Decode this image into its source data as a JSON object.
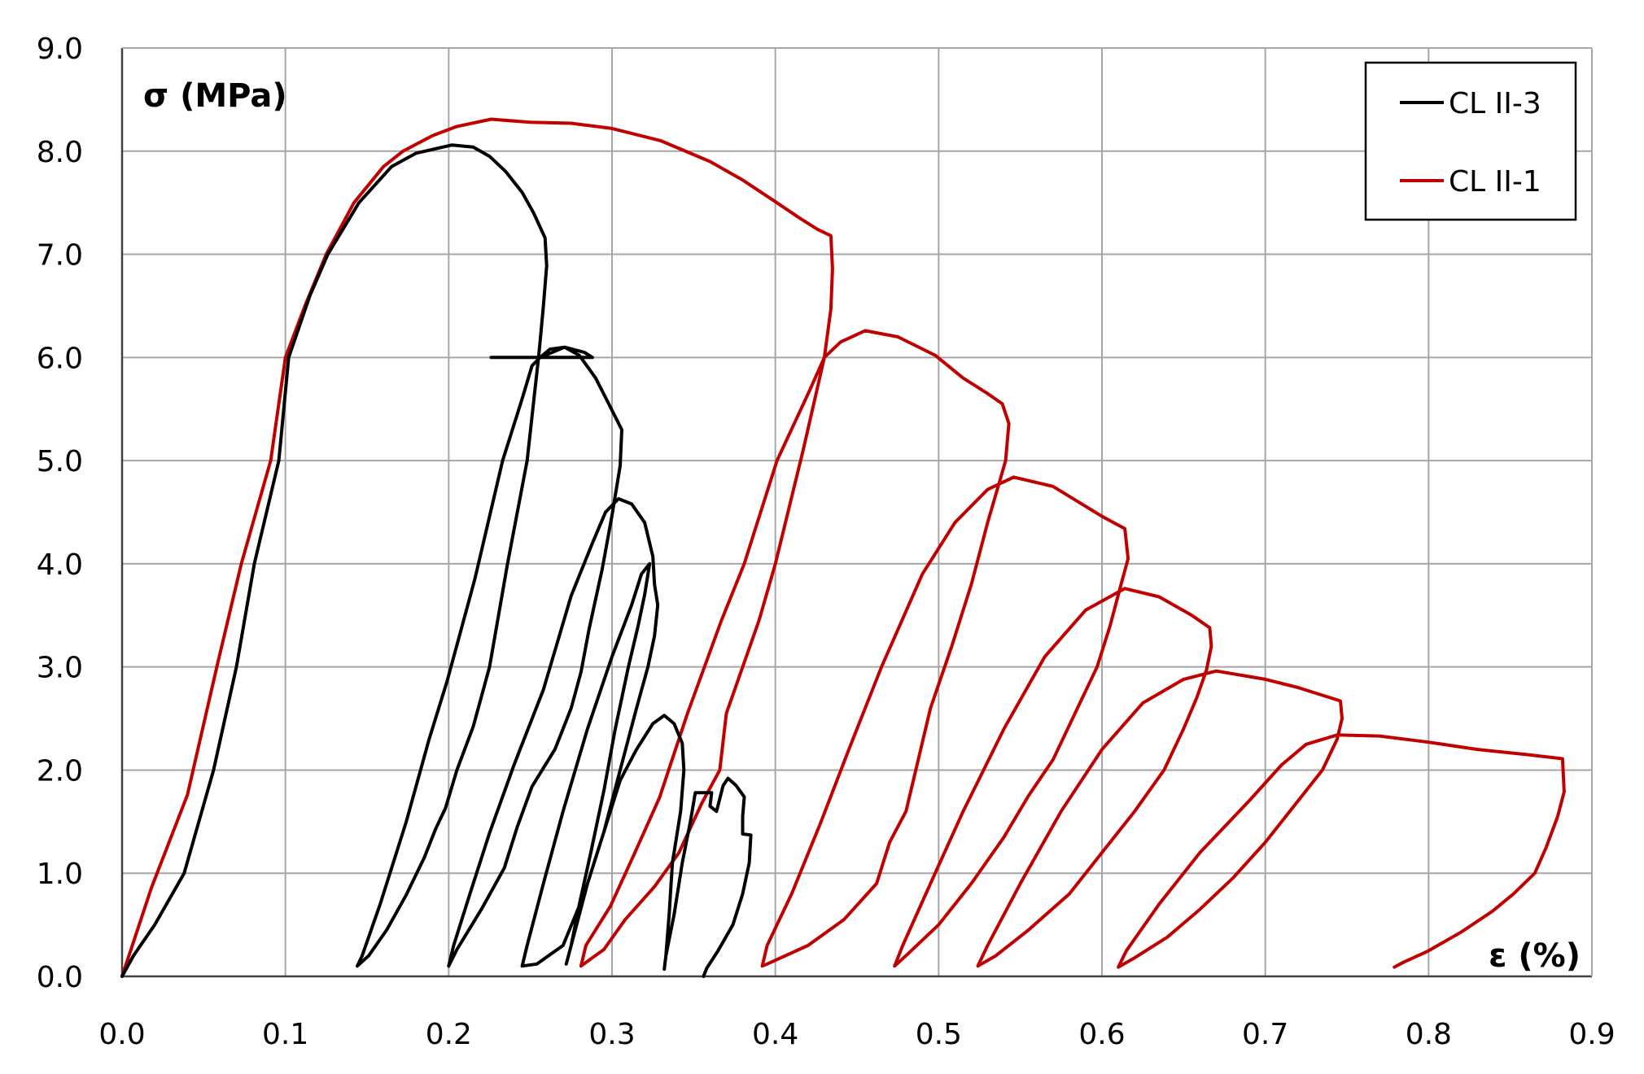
{
  "chart_data": {
    "type": "line",
    "title": "",
    "xlabel": "ε (%)",
    "ylabel": "σ (MPa)",
    "xlim": [
      0.0,
      0.9
    ],
    "ylim": [
      0.0,
      9.0
    ],
    "x_ticks": [
      "0.0",
      "0.1",
      "0.2",
      "0.3",
      "0.4",
      "0.5",
      "0.6",
      "0.7",
      "0.8",
      "0.9"
    ],
    "y_ticks": [
      "0.0",
      "1.0",
      "2.0",
      "3.0",
      "4.0",
      "5.0",
      "6.0",
      "7.0",
      "8.0",
      "9.0"
    ],
    "grid": true,
    "legend_position": "top-right",
    "series": [
      {
        "name": "CL II-3",
        "color": "#000000",
        "points": [
          [
            0.0,
            0.0
          ],
          [
            0.007,
            0.2
          ],
          [
            0.02,
            0.5
          ],
          [
            0.038,
            1.0
          ],
          [
            0.056,
            2.0
          ],
          [
            0.07,
            3.0
          ],
          [
            0.081,
            4.0
          ],
          [
            0.096,
            5.0
          ],
          [
            0.102,
            6.0
          ],
          [
            0.115,
            6.6
          ],
          [
            0.126,
            7.0
          ],
          [
            0.145,
            7.5
          ],
          [
            0.165,
            7.85
          ],
          [
            0.18,
            7.98
          ],
          [
            0.202,
            8.06
          ],
          [
            0.215,
            8.04
          ],
          [
            0.225,
            7.95
          ],
          [
            0.235,
            7.8
          ],
          [
            0.245,
            7.6
          ],
          [
            0.252,
            7.4
          ],
          [
            0.259,
            7.16
          ],
          [
            0.26,
            6.89
          ],
          [
            0.258,
            6.5
          ],
          [
            0.256,
            6.16
          ],
          [
            0.255,
            6.0
          ],
          [
            0.248,
            5.0
          ],
          [
            0.236,
            4.0
          ],
          [
            0.225,
            3.0
          ],
          [
            0.215,
            2.42
          ],
          [
            0.205,
            2.0
          ],
          [
            0.198,
            1.63
          ],
          [
            0.192,
            1.43
          ],
          [
            0.185,
            1.15
          ],
          [
            0.174,
            0.79
          ],
          [
            0.162,
            0.45
          ],
          [
            0.151,
            0.2
          ],
          [
            0.144,
            0.1
          ],
          [
            0.147,
            0.2
          ],
          [
            0.158,
            0.7
          ],
          [
            0.174,
            1.5
          ],
          [
            0.188,
            2.3
          ],
          [
            0.199,
            2.86
          ],
          [
            0.216,
            3.85
          ],
          [
            0.233,
            5.0
          ],
          [
            0.245,
            5.6
          ],
          [
            0.251,
            5.92
          ],
          [
            0.256,
            6.0
          ],
          [
            0.226,
            6.0
          ],
          [
            0.288,
            6.0
          ],
          [
            0.283,
            6.05
          ],
          [
            0.271,
            6.1
          ],
          [
            0.262,
            6.08
          ],
          [
            0.256,
            6.0
          ],
          [
            0.271,
            6.1
          ],
          [
            0.28,
            6.02
          ],
          [
            0.29,
            5.8
          ],
          [
            0.298,
            5.55
          ],
          [
            0.306,
            5.3
          ],
          [
            0.305,
            4.95
          ],
          [
            0.3,
            4.47
          ],
          [
            0.294,
            3.95
          ],
          [
            0.286,
            3.37
          ],
          [
            0.281,
            2.95
          ],
          [
            0.275,
            2.6
          ],
          [
            0.265,
            2.2
          ],
          [
            0.251,
            1.84
          ],
          [
            0.242,
            1.45
          ],
          [
            0.234,
            1.05
          ],
          [
            0.22,
            0.65
          ],
          [
            0.205,
            0.26
          ],
          [
            0.2,
            0.1
          ],
          [
            0.203,
            0.3
          ],
          [
            0.212,
            0.75
          ],
          [
            0.225,
            1.39
          ],
          [
            0.24,
            2.05
          ],
          [
            0.258,
            2.78
          ],
          [
            0.275,
            3.69
          ],
          [
            0.288,
            4.2
          ],
          [
            0.296,
            4.5
          ],
          [
            0.304,
            4.63
          ],
          [
            0.312,
            4.58
          ],
          [
            0.32,
            4.4
          ],
          [
            0.325,
            4.07
          ],
          [
            0.326,
            3.8
          ],
          [
            0.328,
            3.6
          ],
          [
            0.326,
            3.3
          ],
          [
            0.322,
            3.0
          ],
          [
            0.315,
            2.6
          ],
          [
            0.305,
            2.0
          ],
          [
            0.295,
            1.4
          ],
          [
            0.283,
            0.8
          ],
          [
            0.27,
            0.3
          ],
          [
            0.254,
            0.12
          ],
          [
            0.245,
            0.1
          ],
          [
            0.248,
            0.3
          ],
          [
            0.258,
            0.9
          ],
          [
            0.27,
            1.6
          ],
          [
            0.285,
            2.4
          ],
          [
            0.3,
            3.1
          ],
          [
            0.312,
            3.6
          ],
          [
            0.318,
            3.9
          ],
          [
            0.323,
            4.0
          ],
          [
            0.32,
            3.7
          ],
          [
            0.316,
            3.4
          ],
          [
            0.31,
            3.0
          ],
          [
            0.302,
            2.4
          ],
          [
            0.295,
            1.8
          ],
          [
            0.287,
            1.2
          ],
          [
            0.28,
            0.7
          ],
          [
            0.275,
            0.3
          ],
          [
            0.272,
            0.12
          ],
          [
            0.275,
            0.3
          ],
          [
            0.285,
            0.9
          ],
          [
            0.295,
            1.4
          ],
          [
            0.305,
            1.9
          ],
          [
            0.315,
            2.2
          ],
          [
            0.325,
            2.45
          ],
          [
            0.332,
            2.53
          ],
          [
            0.338,
            2.45
          ],
          [
            0.343,
            2.26
          ],
          [
            0.344,
            2.0
          ],
          [
            0.342,
            1.6
          ],
          [
            0.337,
            1.1
          ],
          [
            0.335,
            0.6
          ],
          [
            0.333,
            0.2
          ],
          [
            0.332,
            0.07
          ],
          [
            0.333,
            0.2
          ],
          [
            0.338,
            0.6
          ],
          [
            0.343,
            1.1
          ],
          [
            0.348,
            1.5
          ],
          [
            0.351,
            1.78
          ],
          [
            0.356,
            1.78
          ],
          [
            0.361,
            1.78
          ],
          [
            0.36,
            1.65
          ],
          [
            0.364,
            1.6
          ],
          [
            0.368,
            1.85
          ],
          [
            0.371,
            1.92
          ],
          [
            0.376,
            1.85
          ],
          [
            0.381,
            1.74
          ],
          [
            0.38,
            1.55
          ],
          [
            0.38,
            1.38
          ],
          [
            0.385,
            1.37
          ],
          [
            0.384,
            1.1
          ],
          [
            0.38,
            0.8
          ],
          [
            0.374,
            0.5
          ],
          [
            0.365,
            0.25
          ],
          [
            0.358,
            0.08
          ],
          [
            0.356,
            0.0
          ]
        ]
      },
      {
        "name": "CL II-1",
        "color": "#c00000",
        "points": [
          [
            0.0,
            0.0
          ],
          [
            0.018,
            0.86
          ],
          [
            0.04,
            1.76
          ],
          [
            0.058,
            3.0
          ],
          [
            0.073,
            4.0
          ],
          [
            0.091,
            5.0
          ],
          [
            0.1,
            6.0
          ],
          [
            0.112,
            6.5
          ],
          [
            0.125,
            7.0
          ],
          [
            0.142,
            7.5
          ],
          [
            0.16,
            7.85
          ],
          [
            0.172,
            8.0
          ],
          [
            0.19,
            8.15
          ],
          [
            0.205,
            8.24
          ],
          [
            0.226,
            8.31
          ],
          [
            0.25,
            8.28
          ],
          [
            0.275,
            8.27
          ],
          [
            0.3,
            8.22
          ],
          [
            0.33,
            8.1
          ],
          [
            0.36,
            7.9
          ],
          [
            0.38,
            7.72
          ],
          [
            0.399,
            7.52
          ],
          [
            0.415,
            7.35
          ],
          [
            0.426,
            7.24
          ],
          [
            0.434,
            7.18
          ],
          [
            0.435,
            6.86
          ],
          [
            0.434,
            6.47
          ],
          [
            0.43,
            6.0
          ],
          [
            0.417,
            5.1
          ],
          [
            0.4,
            4.0
          ],
          [
            0.39,
            3.45
          ],
          [
            0.37,
            2.55
          ],
          [
            0.366,
            2.0
          ],
          [
            0.355,
            1.68
          ],
          [
            0.341,
            1.2
          ],
          [
            0.326,
            0.87
          ],
          [
            0.308,
            0.55
          ],
          [
            0.295,
            0.26
          ],
          [
            0.281,
            0.1
          ],
          [
            0.284,
            0.3
          ],
          [
            0.299,
            0.68
          ],
          [
            0.314,
            1.2
          ],
          [
            0.329,
            1.73
          ],
          [
            0.346,
            2.54
          ],
          [
            0.367,
            3.45
          ],
          [
            0.381,
            4.0
          ],
          [
            0.401,
            5.0
          ],
          [
            0.421,
            5.68
          ],
          [
            0.43,
            6.0
          ],
          [
            0.44,
            6.15
          ],
          [
            0.455,
            6.26
          ],
          [
            0.475,
            6.2
          ],
          [
            0.498,
            6.02
          ],
          [
            0.515,
            5.8
          ],
          [
            0.53,
            5.65
          ],
          [
            0.539,
            5.55
          ],
          [
            0.543,
            5.36
          ],
          [
            0.541,
            5.0
          ],
          [
            0.537,
            4.78
          ],
          [
            0.53,
            4.4
          ],
          [
            0.52,
            3.8
          ],
          [
            0.508,
            3.2
          ],
          [
            0.495,
            2.6
          ],
          [
            0.48,
            1.6
          ],
          [
            0.47,
            1.3
          ],
          [
            0.462,
            0.9
          ],
          [
            0.442,
            0.55
          ],
          [
            0.42,
            0.3
          ],
          [
            0.395,
            0.12
          ],
          [
            0.392,
            0.1
          ],
          [
            0.395,
            0.3
          ],
          [
            0.41,
            0.8
          ],
          [
            0.428,
            1.5
          ],
          [
            0.445,
            2.2
          ],
          [
            0.465,
            3.0
          ],
          [
            0.49,
            3.9
          ],
          [
            0.51,
            4.4
          ],
          [
            0.53,
            4.72
          ],
          [
            0.546,
            4.84
          ],
          [
            0.57,
            4.75
          ],
          [
            0.6,
            4.46
          ],
          [
            0.614,
            4.34
          ],
          [
            0.616,
            4.05
          ],
          [
            0.611,
            3.76
          ],
          [
            0.605,
            3.4
          ],
          [
            0.597,
            3.0
          ],
          [
            0.585,
            2.6
          ],
          [
            0.57,
            2.1
          ],
          [
            0.555,
            1.75
          ],
          [
            0.54,
            1.35
          ],
          [
            0.52,
            0.9
          ],
          [
            0.5,
            0.5
          ],
          [
            0.48,
            0.2
          ],
          [
            0.473,
            0.1
          ],
          [
            0.478,
            0.3
          ],
          [
            0.495,
            0.9
          ],
          [
            0.515,
            1.6
          ],
          [
            0.54,
            2.4
          ],
          [
            0.565,
            3.1
          ],
          [
            0.59,
            3.55
          ],
          [
            0.614,
            3.76
          ],
          [
            0.635,
            3.68
          ],
          [
            0.655,
            3.5
          ],
          [
            0.666,
            3.38
          ],
          [
            0.667,
            3.2
          ],
          [
            0.664,
            2.97
          ],
          [
            0.658,
            2.7
          ],
          [
            0.65,
            2.4
          ],
          [
            0.638,
            2.0
          ],
          [
            0.62,
            1.6
          ],
          [
            0.6,
            1.2
          ],
          [
            0.58,
            0.8
          ],
          [
            0.555,
            0.45
          ],
          [
            0.535,
            0.2
          ],
          [
            0.524,
            0.1
          ],
          [
            0.53,
            0.3
          ],
          [
            0.55,
            0.9
          ],
          [
            0.575,
            1.6
          ],
          [
            0.6,
            2.2
          ],
          [
            0.625,
            2.65
          ],
          [
            0.65,
            2.88
          ],
          [
            0.67,
            2.96
          ],
          [
            0.7,
            2.88
          ],
          [
            0.72,
            2.8
          ],
          [
            0.746,
            2.67
          ],
          [
            0.747,
            2.5
          ],
          [
            0.744,
            2.3
          ],
          [
            0.735,
            2.0
          ],
          [
            0.72,
            1.7
          ],
          [
            0.7,
            1.3
          ],
          [
            0.68,
            0.95
          ],
          [
            0.66,
            0.65
          ],
          [
            0.64,
            0.38
          ],
          [
            0.62,
            0.18
          ],
          [
            0.61,
            0.09
          ],
          [
            0.615,
            0.25
          ],
          [
            0.635,
            0.7
          ],
          [
            0.66,
            1.2
          ],
          [
            0.69,
            1.7
          ],
          [
            0.71,
            2.05
          ],
          [
            0.725,
            2.25
          ],
          [
            0.744,
            2.34
          ],
          [
            0.77,
            2.33
          ],
          [
            0.8,
            2.27
          ],
          [
            0.83,
            2.2
          ],
          [
            0.86,
            2.15
          ],
          [
            0.882,
            2.11
          ],
          [
            0.883,
            1.79
          ],
          [
            0.879,
            1.55
          ],
          [
            0.872,
            1.25
          ],
          [
            0.865,
            1.0
          ],
          [
            0.852,
            0.8
          ],
          [
            0.839,
            0.63
          ],
          [
            0.82,
            0.43
          ],
          [
            0.799,
            0.24
          ],
          [
            0.785,
            0.14
          ],
          [
            0.779,
            0.09
          ]
        ]
      }
    ]
  },
  "legend": {
    "items": [
      {
        "label": "CL II-3",
        "color": "#000000"
      },
      {
        "label": "CL II-1",
        "color": "#c00000"
      }
    ]
  },
  "axes": {
    "x_title": "ε (%)",
    "y_title": "σ (MPa)"
  }
}
